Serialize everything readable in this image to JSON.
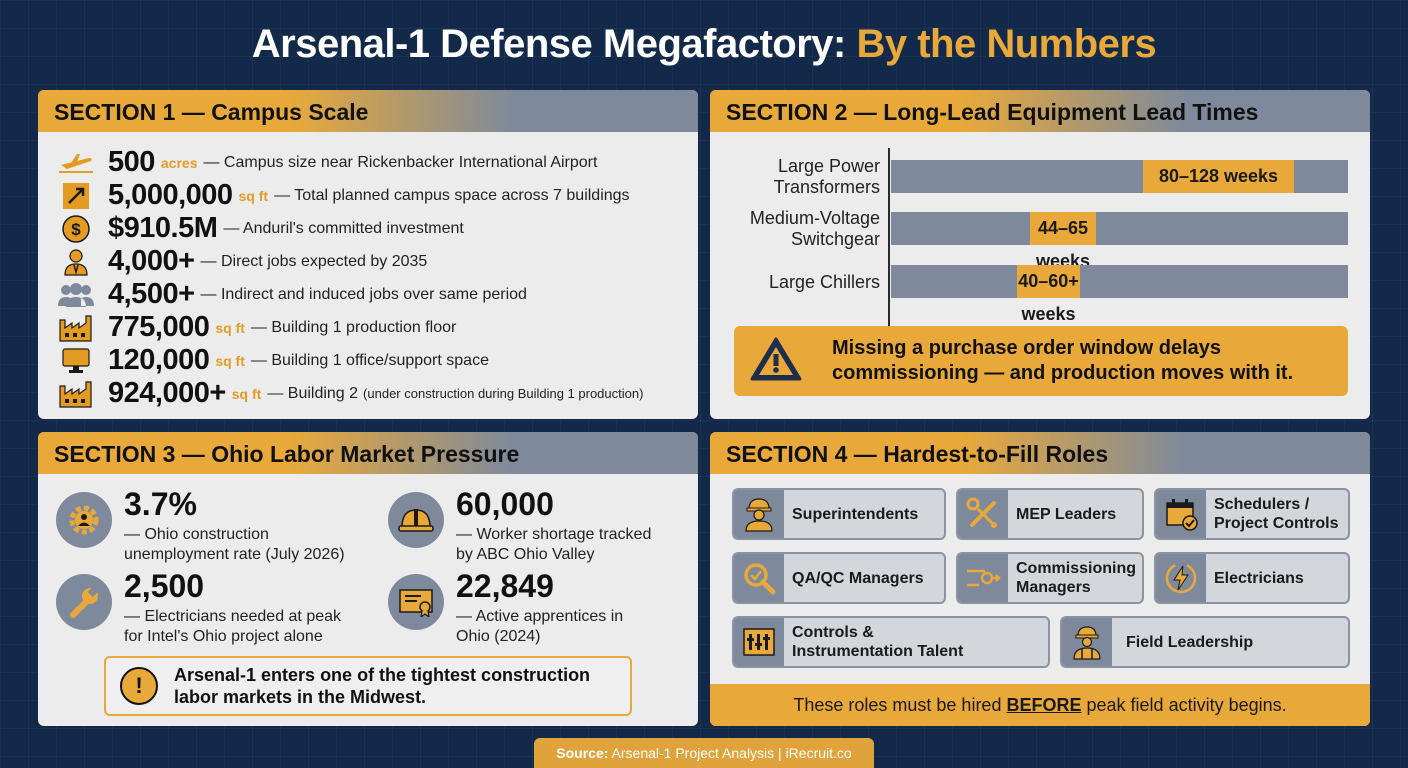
{
  "header": {
    "title_main": "Arsenal-1 Defense Megafactory:",
    "title_accent": "By the Numbers",
    "accent_color": "#e9a93a",
    "background_color": "#13294a"
  },
  "section1": {
    "heading": "SECTION 1 — Campus Scale",
    "stats": [
      {
        "icon": "airplane-icon",
        "number": "500",
        "unit": "acres",
        "desc": "— Campus size near Rickenbacker International Airport",
        "note": ""
      },
      {
        "icon": "expand-arrows-icon",
        "number": "5,000,000",
        "unit": "sq ft",
        "desc": "— Total planned campus space across 7 buildings",
        "note": ""
      },
      {
        "icon": "dollar-coin-icon",
        "number": "$910.5M",
        "unit": "",
        "desc": "— Anduril's committed investment",
        "note": ""
      },
      {
        "icon": "worker-icon",
        "number": "4,000+",
        "unit": "",
        "desc": "— Direct jobs expected by 2035",
        "note": ""
      },
      {
        "icon": "group-icon",
        "number": "4,500+",
        "unit": "",
        "desc": "— Indirect and induced jobs over same period",
        "note": ""
      },
      {
        "icon": "factory-icon",
        "number": "775,000",
        "unit": "sq ft",
        "desc": "— Building 1 production floor",
        "note": ""
      },
      {
        "icon": "monitor-icon",
        "number": "120,000",
        "unit": "sq ft",
        "desc": "— Building 1 office/support space",
        "note": ""
      },
      {
        "icon": "factory-icon",
        "number": "924,000+",
        "unit": "sq ft",
        "desc": "— Building 2",
        "note": "(under construction during Building 1 production)"
      }
    ]
  },
  "section2": {
    "heading": "SECTION 2 — Long-Lead Equipment Lead Times",
    "bars": [
      {
        "label_line1": "Large Power",
        "label_line2": "Transformers",
        "range_label": "80–128 weeks",
        "min_weeks": 80,
        "max_weeks": 128
      },
      {
        "label_line1": "Medium-Voltage",
        "label_line2": "Switchgear",
        "range_label": "44–65 weeks",
        "min_weeks": 44,
        "max_weeks": 65
      },
      {
        "label_line1": "Large Chillers",
        "label_line2": "",
        "range_label": "40–60+ weeks",
        "min_weeks": 40,
        "max_weeks": 60
      }
    ],
    "warning_line1": "Missing a purchase order window delays",
    "warning_line2": "commissioning — and production moves with it."
  },
  "section3": {
    "heading": "SECTION 3 — Ohio Labor Market Pressure",
    "stats": [
      {
        "icon": "gear-person-icon",
        "number": "3.7%",
        "desc_line1": "— Ohio construction",
        "desc_line2": "unemployment rate (July 2026)"
      },
      {
        "icon": "hard-hat-icon",
        "number": "60,000",
        "desc_line1": "— Worker shortage tracked",
        "desc_line2": "by ABC Ohio Valley"
      },
      {
        "icon": "wrench-icon",
        "number": "2,500",
        "desc_line1": "— Electricians needed at peak",
        "desc_line2": "for Intel's Ohio project alone"
      },
      {
        "icon": "certificate-icon",
        "number": "22,849",
        "desc_line1": "— Active apprentices in",
        "desc_line2": "Ohio (2024)"
      }
    ],
    "note_line1": "Arsenal-1 enters one of the tightest construction",
    "note_line2": "labor markets in the Midwest.",
    "note_icon": "!"
  },
  "section4": {
    "heading": "SECTION 4 — Hardest-to-Fill Roles",
    "roles": [
      {
        "icon": "superintendent-icon",
        "line1": "Superintendents",
        "line2": ""
      },
      {
        "icon": "tools-icon",
        "line1": "MEP Leaders",
        "line2": ""
      },
      {
        "icon": "calendar-check-icon",
        "line1": "Schedulers /",
        "line2": "Project Controls"
      },
      {
        "icon": "magnifier-check-icon",
        "line1": "QA/QC Managers",
        "line2": ""
      },
      {
        "icon": "switch-flow-icon",
        "line1": "Commissioning",
        "line2": "Managers"
      },
      {
        "icon": "lightning-icon",
        "line1": "Electricians",
        "line2": ""
      },
      {
        "icon": "control-panel-icon",
        "line1": "Controls &",
        "line2": "Instrumentation Talent"
      },
      {
        "icon": "field-leader-icon",
        "line1": "Field Leadership",
        "line2": ""
      }
    ],
    "footer_pre": "These roles must be hired",
    "footer_emph": "BEFORE",
    "footer_post": "peak field activity begins."
  },
  "source": {
    "label": "Source:",
    "text": "Arsenal-1 Project Analysis | iRecruit.co"
  }
}
